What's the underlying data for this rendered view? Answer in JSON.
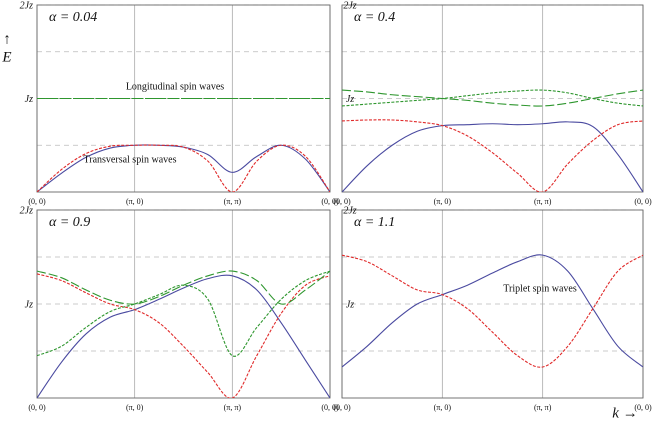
{
  "ylabel_arrow": "↑",
  "ylabel": "E",
  "xlabel": "k →",
  "chart_data": [
    {
      "type": "line",
      "title": "α = 0.04",
      "annotations": [
        "Longitudinal spin waves",
        "Transversal spin waves"
      ],
      "x": [
        0,
        0.25,
        0.5,
        0.75,
        1,
        1.25,
        1.5,
        1.75,
        2,
        2.25,
        2.5,
        2.75,
        3
      ],
      "xlim": [
        0,
        3
      ],
      "xticks": [
        {
          "value": 0,
          "label": "(0, 0)"
        },
        {
          "value": 1,
          "label": "(π, 0)"
        },
        {
          "value": 2,
          "label": "(π, π)"
        },
        {
          "value": 3,
          "label": "(0, 0)"
        }
      ],
      "ylim": [
        0,
        2
      ],
      "yticks": [
        {
          "value": 1,
          "label": "Jz"
        },
        {
          "value": 2,
          "label": "2Jz"
        }
      ],
      "minor_yticks": [
        0.5,
        1.5
      ],
      "grid": true,
      "series": [
        {
          "color": "#4a4aa0",
          "dash": "solid",
          "values": [
            0,
            0.2,
            0.37,
            0.47,
            0.5,
            0.5,
            0.48,
            0.4,
            0.21,
            0.38,
            0.5,
            0.35,
            0
          ]
        },
        {
          "color": "#e02a2a",
          "dash": "dashed",
          "values": [
            0,
            0.24,
            0.41,
            0.49,
            0.5,
            0.5,
            0.48,
            0.33,
            0,
            0.33,
            0.5,
            0.38,
            0
          ]
        },
        {
          "color": "#2e962e",
          "dash": "longdash",
          "values": [
            1,
            1,
            1,
            1,
            1,
            1,
            1,
            1,
            1,
            1,
            1,
            1,
            1
          ]
        },
        {
          "color": "#2e962e",
          "dash": "dashed",
          "values": [
            1,
            1,
            1,
            1,
            1,
            1,
            1,
            1,
            1,
            1,
            1,
            1,
            1
          ]
        }
      ]
    },
    {
      "type": "line",
      "title": "α = 0.4",
      "x": [
        0,
        0.25,
        0.5,
        0.75,
        1,
        1.25,
        1.5,
        1.75,
        2,
        2.25,
        2.5,
        2.75,
        3
      ],
      "xlim": [
        0,
        3
      ],
      "xticks": [
        {
          "value": 0,
          "label": "(0, 0)"
        },
        {
          "value": 1,
          "label": "(π, 0)"
        },
        {
          "value": 2,
          "label": "(π, π)"
        },
        {
          "value": 3,
          "label": "(0, 0)"
        }
      ],
      "ylim": [
        0,
        2
      ],
      "yticks": [
        {
          "value": 1,
          "label": "Jz"
        },
        {
          "value": 2,
          "label": "2Jz"
        }
      ],
      "minor_yticks": [
        0.5,
        1.5
      ],
      "grid": true,
      "series": [
        {
          "color": "#4a4aa0",
          "dash": "solid",
          "values": [
            0,
            0.28,
            0.5,
            0.65,
            0.71,
            0.72,
            0.73,
            0.72,
            0.73,
            0.75,
            0.7,
            0.4,
            0
          ]
        },
        {
          "color": "#e02a2a",
          "dash": "dashed",
          "values": [
            0.76,
            0.77,
            0.77,
            0.75,
            0.71,
            0.6,
            0.42,
            0.2,
            0,
            0.3,
            0.55,
            0.72,
            0.76
          ]
        },
        {
          "color": "#2e962e",
          "dash": "longdash",
          "values": [
            1.09,
            1.07,
            1.04,
            1.02,
            1.0,
            0.98,
            0.95,
            0.93,
            0.92,
            0.95,
            1.0,
            1.05,
            1.09
          ]
        },
        {
          "color": "#2e962e",
          "dash": "dashed",
          "values": [
            0.92,
            0.94,
            0.96,
            0.98,
            1.0,
            1.03,
            1.06,
            1.08,
            1.09,
            1.06,
            1.0,
            0.95,
            0.92
          ]
        }
      ]
    },
    {
      "type": "line",
      "title": "α = 0.9",
      "x": [
        0,
        0.25,
        0.5,
        0.75,
        1,
        1.25,
        1.5,
        1.75,
        2,
        2.25,
        2.5,
        2.75,
        3
      ],
      "xlim": [
        0,
        3
      ],
      "xticks": [
        {
          "value": 0,
          "label": "(0, 0)"
        },
        {
          "value": 1,
          "label": "(π, 0)"
        },
        {
          "value": 2,
          "label": "(π, π)"
        },
        {
          "value": 3,
          "label": "(0, 0)"
        }
      ],
      "ylim": [
        0,
        2
      ],
      "yticks": [
        {
          "value": 1,
          "label": "Jz"
        },
        {
          "value": 2,
          "label": "2Jz"
        }
      ],
      "minor_yticks": [
        0.5,
        1.5
      ],
      "grid": true,
      "series": [
        {
          "color": "#4a4aa0",
          "dash": "solid",
          "values": [
            0,
            0.38,
            0.68,
            0.86,
            0.94,
            1.05,
            1.17,
            1.27,
            1.3,
            1.15,
            0.8,
            0.4,
            0
          ]
        },
        {
          "color": "#e02a2a",
          "dash": "dashed",
          "values": [
            1.32,
            1.25,
            1.12,
            1.0,
            0.94,
            0.8,
            0.55,
            0.27,
            0,
            0.45,
            0.9,
            1.2,
            1.3
          ]
        },
        {
          "color": "#2e962e",
          "dash": "longdash",
          "values": [
            1.35,
            1.28,
            1.15,
            1.04,
            1.0,
            1.08,
            1.2,
            1.3,
            1.35,
            1.25,
            1.0,
            1.15,
            1.35
          ]
        },
        {
          "color": "#2e962e",
          "dash": "dashed",
          "values": [
            0.45,
            0.55,
            0.75,
            0.92,
            1.0,
            1.1,
            1.2,
            1.05,
            0.45,
            0.75,
            1.05,
            1.25,
            1.35
          ]
        }
      ]
    },
    {
      "type": "line",
      "title": "α = 1.1",
      "annotations": [
        "Triplet spin waves"
      ],
      "x": [
        0,
        0.25,
        0.5,
        0.75,
        1,
        1.25,
        1.5,
        1.75,
        2,
        2.25,
        2.5,
        2.75,
        3
      ],
      "xlim": [
        0,
        3
      ],
      "xticks": [
        {
          "value": 0,
          "label": "(0, 0)"
        },
        {
          "value": 1,
          "label": "(π, 0)"
        },
        {
          "value": 2,
          "label": "(π, π)"
        },
        {
          "value": 3,
          "label": "(0, 0)"
        }
      ],
      "ylim": [
        0,
        2
      ],
      "yticks": [
        {
          "value": 1,
          "label": "Jz"
        },
        {
          "value": 2,
          "label": "2Jz"
        }
      ],
      "minor_yticks": [
        0.5,
        1.5
      ],
      "grid": true,
      "series": [
        {
          "color": "#4a4aa0",
          "dash": "solid",
          "values": [
            0.33,
            0.55,
            0.8,
            1.0,
            1.1,
            1.2,
            1.33,
            1.45,
            1.52,
            1.35,
            0.95,
            0.55,
            0.33
          ]
        },
        {
          "color": "#e02a2a",
          "dash": "dashed",
          "values": [
            1.52,
            1.45,
            1.3,
            1.15,
            1.1,
            0.95,
            0.7,
            0.45,
            0.33,
            0.55,
            0.95,
            1.35,
            1.52
          ]
        }
      ]
    }
  ]
}
